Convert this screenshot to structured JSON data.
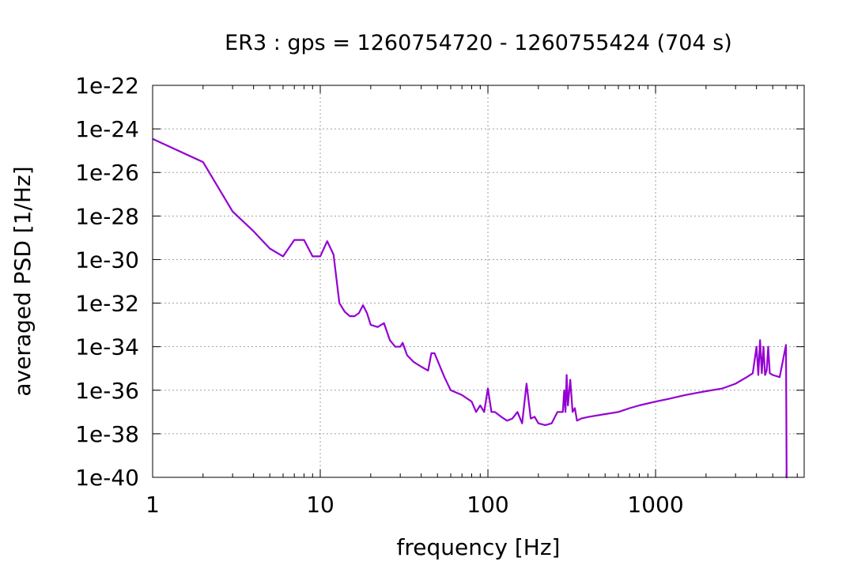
{
  "chart_data": {
    "type": "line",
    "title": "ER3 : gps = 1260754720 - 1260755424 (704 s)",
    "xlabel": "frequency [Hz]",
    "ylabel": "averaged PSD [1/Hz]",
    "xscale": "log",
    "yscale": "log",
    "xlim": [
      1,
      7700
    ],
    "ylim": [
      1e-40,
      1e-22
    ],
    "grid": true,
    "legend": "none",
    "x_ticks": [
      {
        "value": 1,
        "label": "1"
      },
      {
        "value": 10,
        "label": "10"
      },
      {
        "value": 100,
        "label": "100"
      },
      {
        "value": 1000,
        "label": "1000"
      }
    ],
    "y_ticks": [
      {
        "value": 1e-22,
        "label": "1e-22"
      },
      {
        "value": 1e-24,
        "label": "1e-24"
      },
      {
        "value": 1e-26,
        "label": "1e-26"
      },
      {
        "value": 1e-28,
        "label": "1e-28"
      },
      {
        "value": 1e-30,
        "label": "1e-30"
      },
      {
        "value": 1e-32,
        "label": "1e-32"
      },
      {
        "value": 1e-34,
        "label": "1e-34"
      },
      {
        "value": 1e-36,
        "label": "1e-36"
      },
      {
        "value": 1e-38,
        "label": "1e-38"
      },
      {
        "value": 1e-40,
        "label": "1e-40"
      }
    ],
    "colors": {
      "series": "#9400d3"
    },
    "series": [
      {
        "x": [
          1,
          2,
          3,
          4,
          5,
          6,
          7,
          8,
          9,
          10,
          11,
          12,
          13,
          14,
          15,
          16,
          17,
          18,
          19,
          20,
          22,
          24,
          26,
          28,
          30,
          31,
          33,
          36,
          40,
          44,
          46,
          48,
          55,
          60,
          70,
          80,
          85,
          90,
          95,
          100,
          105,
          110,
          120,
          130,
          140,
          150,
          160,
          170,
          180,
          190,
          200,
          220,
          240,
          260,
          280,
          285,
          290,
          295,
          300,
          310,
          320,
          330,
          340,
          360,
          400,
          500,
          600,
          700,
          800,
          1000,
          1200,
          1500,
          2000,
          2500,
          3000,
          3500,
          3800,
          4000,
          4100,
          4200,
          4300,
          4400,
          4500,
          4600,
          4700,
          4800,
          5000,
          5500,
          6000,
          6050,
          6100
        ],
        "y": [
          3.5e-25,
          3e-26,
          1.6e-28,
          2e-29,
          3.2e-30,
          1.4e-30,
          8e-30,
          8e-30,
          1.4e-30,
          1.4e-30,
          7e-30,
          1.7e-30,
          1e-32,
          4e-33,
          2.5e-33,
          2.5e-33,
          3.5e-33,
          8e-33,
          3.5e-33,
          1e-33,
          8e-34,
          1.2e-33,
          2e-34,
          1e-34,
          1e-34,
          1.5e-34,
          4e-35,
          2e-35,
          1.2e-35,
          8e-36,
          5e-35,
          5e-35,
          4e-36,
          1e-36,
          6e-37,
          3e-37,
          1e-37,
          2e-37,
          1e-37,
          1.2e-36,
          1e-37,
          1e-37,
          6e-38,
          4e-38,
          5e-38,
          1e-37,
          3e-38,
          2e-36,
          5e-38,
          6e-38,
          3e-38,
          2.5e-38,
          3e-38,
          1e-37,
          1e-37,
          1e-36,
          1e-37,
          5e-36,
          2e-37,
          3e-36,
          1e-37,
          1.5e-37,
          4e-38,
          5e-38,
          6e-38,
          8e-38,
          1e-37,
          1.5e-37,
          2e-37,
          3e-37,
          4e-37,
          6e-37,
          9e-37,
          1.2e-36,
          2e-36,
          4e-36,
          6e-36,
          1e-34,
          5e-36,
          2e-34,
          6e-36,
          1e-34,
          5e-36,
          8e-36,
          1e-34,
          6e-36,
          5e-36,
          4e-36,
          1.2e-34,
          1e-40,
          1e-40
        ]
      }
    ]
  }
}
